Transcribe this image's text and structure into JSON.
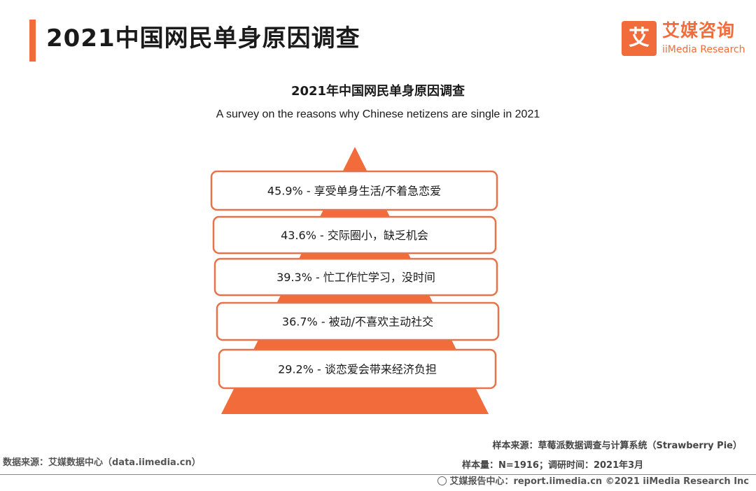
{
  "header": {
    "title": "2021中国网民单身原因调查",
    "accent_color": "#f26b3a"
  },
  "logo": {
    "mark": "艾",
    "name_cn": "艾媒咨询",
    "name_en": "iiMedia Research",
    "icon": "iimedia-logo-icon"
  },
  "chart_data": {
    "type": "pyramid",
    "title": "2021年中国网民单身原因调查",
    "subtitle": "A survey on the reasons why Chinese netizens are single in 2021",
    "unit": "%",
    "categories": [
      "享受单身生活/不着急恋爱",
      "交际圈小，缺乏机会",
      "忙工作忙学习，没时间",
      "被动/不喜欢主动社交",
      "谈恋爱会带来经济负担"
    ],
    "values": [
      45.9,
      43.6,
      39.3,
      36.7,
      29.2
    ],
    "labels": [
      "45.9% - 享受单身生活/不着急恋爱",
      "43.6% - 交际圈小，缺乏机会",
      "39.3% - 忙工作忙学习，没时间",
      "36.7% - 被动/不喜欢主动社交",
      "29.2% - 谈恋爱会带来经济负担"
    ],
    "colors": {
      "fill": "#f26b3a",
      "box_fill": "#ffffff",
      "box_border": "#e8734a"
    }
  },
  "footer": {
    "data_source": "数据来源：艾媒数据中心（data.iimedia.cn）",
    "sample_source": "样本来源：草莓派数据调查与计算系统（Strawberry Pie）",
    "sample_size": "样本量：N=1916；调研时间：2021年3月",
    "report_center": "艾媒报告中心：report.iimedia.cn  ©2021  iiMedia Research  Inc"
  }
}
